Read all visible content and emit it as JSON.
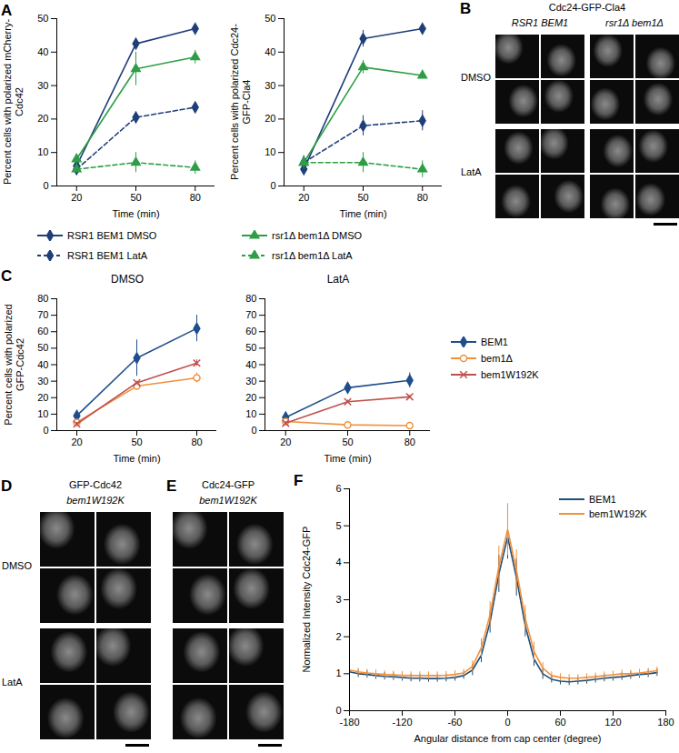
{
  "chart_data": [
    {
      "panel": "A",
      "type": "line",
      "x": [
        20,
        50,
        80
      ],
      "xlim": [
        10,
        90
      ],
      "xticks": [
        20,
        50,
        80
      ],
      "x_label": "Time (min)",
      "y_label": "Percent cells with polarized mCherry-Cdc42",
      "ylim": [
        0,
        50
      ],
      "yticks": [
        0,
        10,
        20,
        30,
        40,
        50
      ],
      "legend": "bottom",
      "series": [
        {
          "name": "RSR1 BEM1 DMSO",
          "color": "#1f3f7a",
          "marker": "diamond",
          "line_style": "solid",
          "values": [
            6,
            42.5,
            47
          ],
          "errors": [
            1,
            1,
            0.8
          ]
        },
        {
          "name": "rsr1Δ bem1Δ DMSO",
          "color": "#2e9e46",
          "marker": "triangle",
          "line_style": "solid",
          "values": [
            8,
            35,
            38.5
          ],
          "errors": [
            1.5,
            5,
            2
          ]
        },
        {
          "name": "RSR1 BEM1 LatA",
          "color": "#1f3f7a",
          "marker": "diamond",
          "line_style": "dashed",
          "values": [
            5,
            20.5,
            23.5
          ],
          "errors": [
            1,
            1,
            1.5
          ]
        },
        {
          "name": "rsr1Δ bem1Δ LatA",
          "color": "#2e9e46",
          "marker": "triangle",
          "line_style": "dashed",
          "values": [
            5,
            7,
            5.5
          ],
          "errors": [
            1,
            3,
            2
          ]
        }
      ]
    },
    {
      "type": "line",
      "x": [
        20,
        50,
        80
      ],
      "xlim": [
        10,
        90
      ],
      "xticks": [
        20,
        50,
        80
      ],
      "x_label": "Time (min)",
      "y_label": "Percent cells with polarized Cdc24-GFP-Cla4",
      "ylim": [
        0,
        50
      ],
      "yticks": [
        0,
        10,
        20,
        30,
        40,
        50
      ],
      "series": [
        {
          "name": "RSR1 BEM1 DMSO",
          "color": "#1f3f7a",
          "marker": "diamond",
          "line_style": "solid",
          "values": [
            5,
            44,
            47
          ],
          "errors": [
            1,
            2.5,
            0.5
          ]
        },
        {
          "name": "rsr1Δ bem1Δ DMSO",
          "color": "#2e9e46",
          "marker": "triangle",
          "line_style": "solid",
          "values": [
            7,
            35.5,
            33
          ],
          "errors": [
            2,
            2,
            1
          ]
        },
        {
          "name": "RSR1 BEM1 LatA",
          "color": "#1f3f7a",
          "marker": "diamond",
          "line_style": "dashed",
          "values": [
            7,
            18,
            19.5
          ],
          "errors": [
            2,
            3,
            3
          ]
        },
        {
          "name": "rsr1Δ bem1Δ LatA",
          "color": "#2e9e46",
          "marker": "triangle",
          "line_style": "dashed",
          "values": [
            7,
            7,
            5
          ],
          "errors": [
            2,
            3,
            2.5
          ]
        }
      ]
    },
    {
      "panel": "C",
      "type": "line",
      "title": "DMSO",
      "x": [
        20,
        50,
        80
      ],
      "xlim": [
        10,
        90
      ],
      "xticks": [
        20,
        50,
        80
      ],
      "x_label": "Time (min)",
      "y_label": "Percent cells with polarized GFP-Cdc42",
      "ylim": [
        0,
        80
      ],
      "yticks": [
        0,
        10,
        20,
        30,
        40,
        50,
        60,
        70,
        80
      ],
      "series": [
        {
          "name": "BEM1",
          "color": "#1f4e8c",
          "marker": "diamond",
          "line_style": "solid",
          "values": [
            9,
            44,
            62
          ],
          "errors": [
            2,
            11,
            8
          ]
        },
        {
          "name": "bem1Δ",
          "color": "#f0913c",
          "marker": "open-circle",
          "line_style": "solid",
          "values": [
            5,
            27,
            32
          ],
          "errors": [
            1,
            2,
            3
          ]
        },
        {
          "name": "bem1W192K",
          "color": "#c0504d",
          "marker": "times",
          "line_style": "solid",
          "values": [
            4,
            29,
            41
          ],
          "errors": [
            1,
            1,
            2
          ]
        }
      ]
    },
    {
      "type": "line",
      "title": "LatA",
      "x": [
        20,
        50,
        80
      ],
      "xlim": [
        10,
        90
      ],
      "xticks": [
        20,
        50,
        80
      ],
      "x_label": "Time (min)",
      "ylim": [
        0,
        80
      ],
      "yticks": [
        0,
        10,
        20,
        30,
        40,
        50,
        60,
        70,
        80
      ],
      "legend": "right",
      "series": [
        {
          "name": "BEM1",
          "color": "#1f4e8c",
          "marker": "diamond",
          "line_style": "solid",
          "values": [
            8,
            26,
            30.5
          ],
          "errors": [
            1,
            3,
            4.5
          ]
        },
        {
          "name": "bem1Δ",
          "color": "#f0913c",
          "marker": "open-circle",
          "line_style": "solid",
          "values": [
            5.5,
            3.5,
            3
          ],
          "errors": [
            1,
            1,
            0.5
          ]
        },
        {
          "name": "bem1W192K",
          "color": "#c0504d",
          "marker": "times",
          "line_style": "solid",
          "values": [
            4.5,
            17.5,
            20.5
          ],
          "errors": [
            1,
            1,
            1
          ]
        }
      ]
    },
    {
      "panel": "F",
      "type": "line",
      "x": [
        -180,
        -170,
        -160,
        -150,
        -140,
        -130,
        -120,
        -110,
        -100,
        -90,
        -80,
        -70,
        -60,
        -50,
        -40,
        -30,
        -20,
        -10,
        0,
        10,
        20,
        30,
        40,
        50,
        60,
        70,
        80,
        90,
        100,
        110,
        120,
        130,
        140,
        150,
        160,
        170
      ],
      "xlim": [
        -180,
        180
      ],
      "xticks": [
        -180,
        -120,
        -60,
        0,
        60,
        120,
        180
      ],
      "x_label": "Angular distance from cap center (degree)",
      "y_label": "Normalized Intensity Cdc24-GFP",
      "ylim": [
        0,
        6
      ],
      "yticks": [
        0,
        1,
        2,
        3,
        4,
        5,
        6
      ],
      "legend": "top-right",
      "series": [
        {
          "name": "BEM1",
          "color": "#1f4e79",
          "line_style": "solid",
          "values": [
            1.05,
            1.0,
            0.98,
            0.95,
            0.93,
            0.92,
            0.9,
            0.88,
            0.88,
            0.87,
            0.87,
            0.88,
            0.9,
            0.95,
            1.1,
            1.5,
            2.4,
            3.7,
            4.7,
            3.6,
            2.3,
            1.4,
            1.0,
            0.85,
            0.8,
            0.78,
            0.8,
            0.82,
            0.85,
            0.88,
            0.9,
            0.92,
            0.95,
            0.98,
            1.0,
            1.03
          ],
          "errors": [
            0.1,
            0.1,
            0.1,
            0.1,
            0.1,
            0.1,
            0.1,
            0.1,
            0.1,
            0.1,
            0.1,
            0.1,
            0.1,
            0.1,
            0.15,
            0.2,
            0.3,
            0.5,
            0.6,
            0.5,
            0.3,
            0.2,
            0.15,
            0.1,
            0.1,
            0.1,
            0.1,
            0.1,
            0.1,
            0.1,
            0.1,
            0.1,
            0.1,
            0.1,
            0.1,
            0.1
          ]
        },
        {
          "name": "bem1W192K",
          "color": "#f0913c",
          "line_style": "solid",
          "values": [
            1.1,
            1.05,
            1.02,
            1.0,
            0.98,
            0.97,
            0.96,
            0.95,
            0.95,
            0.95,
            0.95,
            0.96,
            0.98,
            1.02,
            1.2,
            1.7,
            2.6,
            3.9,
            4.9,
            3.8,
            2.5,
            1.6,
            1.15,
            0.95,
            0.9,
            0.88,
            0.88,
            0.9,
            0.92,
            0.95,
            0.97,
            1.0,
            1.0,
            1.02,
            1.05,
            1.08
          ],
          "errors": [
            0.1,
            0.1,
            0.1,
            0.1,
            0.1,
            0.1,
            0.1,
            0.1,
            0.1,
            0.1,
            0.1,
            0.1,
            0.1,
            0.1,
            0.15,
            0.25,
            0.35,
            0.55,
            0.7,
            0.55,
            0.35,
            0.25,
            0.15,
            0.1,
            0.1,
            0.1,
            0.1,
            0.1,
            0.1,
            0.1,
            0.1,
            0.1,
            0.1,
            0.1,
            0.1,
            0.1
          ]
        }
      ]
    }
  ],
  "image_panels": [
    {
      "panel": "B",
      "header": "Cdc24-GFP-Cla4",
      "columns": [
        "RSR1 BEM1",
        "rsr1Δ bem1Δ"
      ],
      "rows": [
        "DMSO",
        "LatA"
      ]
    },
    {
      "panel": "D",
      "header": "GFP-Cdc42",
      "columns": [
        "bem1W192K"
      ],
      "rows": [
        "DMSO",
        "LatA"
      ]
    },
    {
      "panel": "E",
      "header": "Cdc24-GFP",
      "columns": [
        "bem1W192K"
      ],
      "rows": []
    }
  ]
}
